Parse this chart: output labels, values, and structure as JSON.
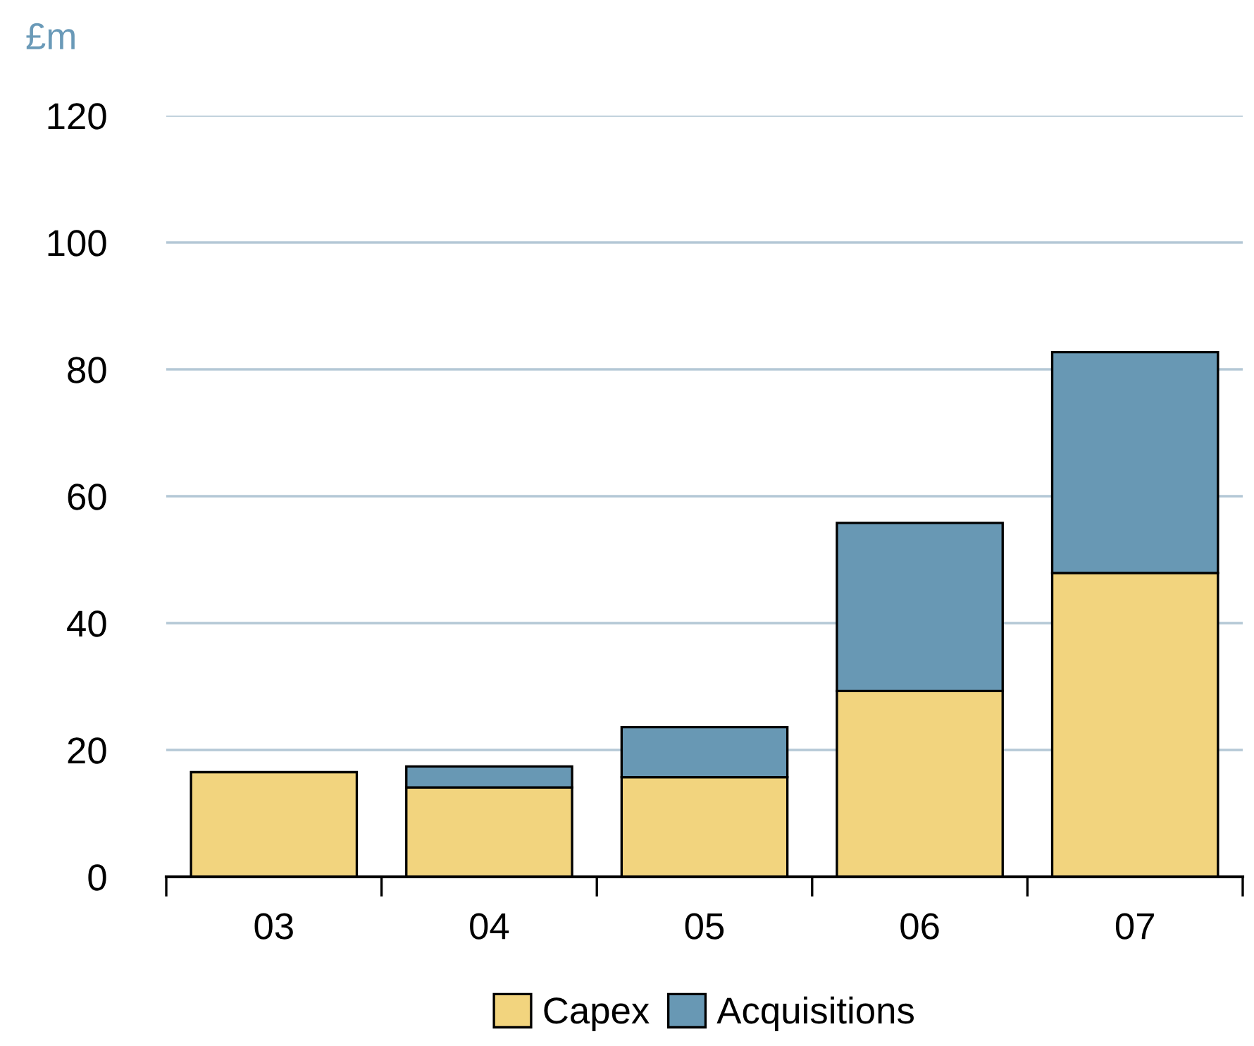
{
  "chart_data": {
    "type": "bar",
    "stacked": true,
    "ylabel": "£m",
    "categories": [
      "03",
      "04",
      "05",
      "06",
      "07"
    ],
    "series": [
      {
        "name": "Capex",
        "color": "#f2d47e",
        "values": [
          16.5,
          14.1,
          15.7,
          29.3,
          47.9
        ]
      },
      {
        "name": "Acquisitions",
        "color": "#6898b4",
        "values": [
          null,
          3.3,
          7.9,
          26.5,
          34.8
        ]
      }
    ],
    "ylim": [
      0,
      120
    ],
    "yticks": [
      0,
      20,
      40,
      60,
      80,
      100,
      120
    ],
    "grid": "y",
    "legend": "bottom"
  }
}
